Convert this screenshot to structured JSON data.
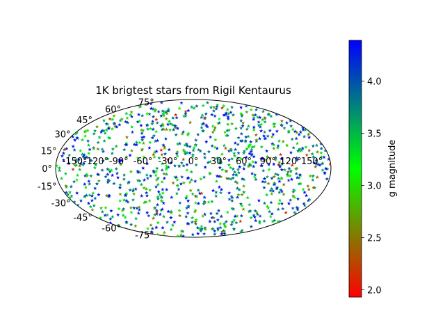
{
  "chart_data": {
    "type": "scatter",
    "projection": "aitoff",
    "title": "1K brigtest stars from Rigil Kentaurus",
    "marker": "star",
    "n_points": 1000,
    "lon_ticks": [
      "-150°",
      "-120°",
      "-90°",
      "-60°",
      "-30°",
      "0°",
      "30°",
      "60°",
      "90°",
      "120°",
      "150°"
    ],
    "lat_ticks": [
      "75°",
      "60°",
      "45°",
      "30°",
      "15°",
      "0°",
      "-15°",
      "-30°",
      "-45°",
      "-60°",
      "-75°"
    ],
    "lon_range": [
      -180,
      180
    ],
    "lat_range": [
      -90,
      90
    ],
    "colorbar": {
      "label": "g magnitude",
      "range": [
        1.93,
        4.39
      ],
      "ticks": [
        "2.0",
        "2.5",
        "3.0",
        "3.5",
        "4.0"
      ],
      "tick_values": [
        2.0,
        2.5,
        3.0,
        3.5,
        4.0
      ],
      "colormap": [
        "#ff0000",
        "#00ff00",
        "#0000ff"
      ]
    },
    "grid": false
  }
}
